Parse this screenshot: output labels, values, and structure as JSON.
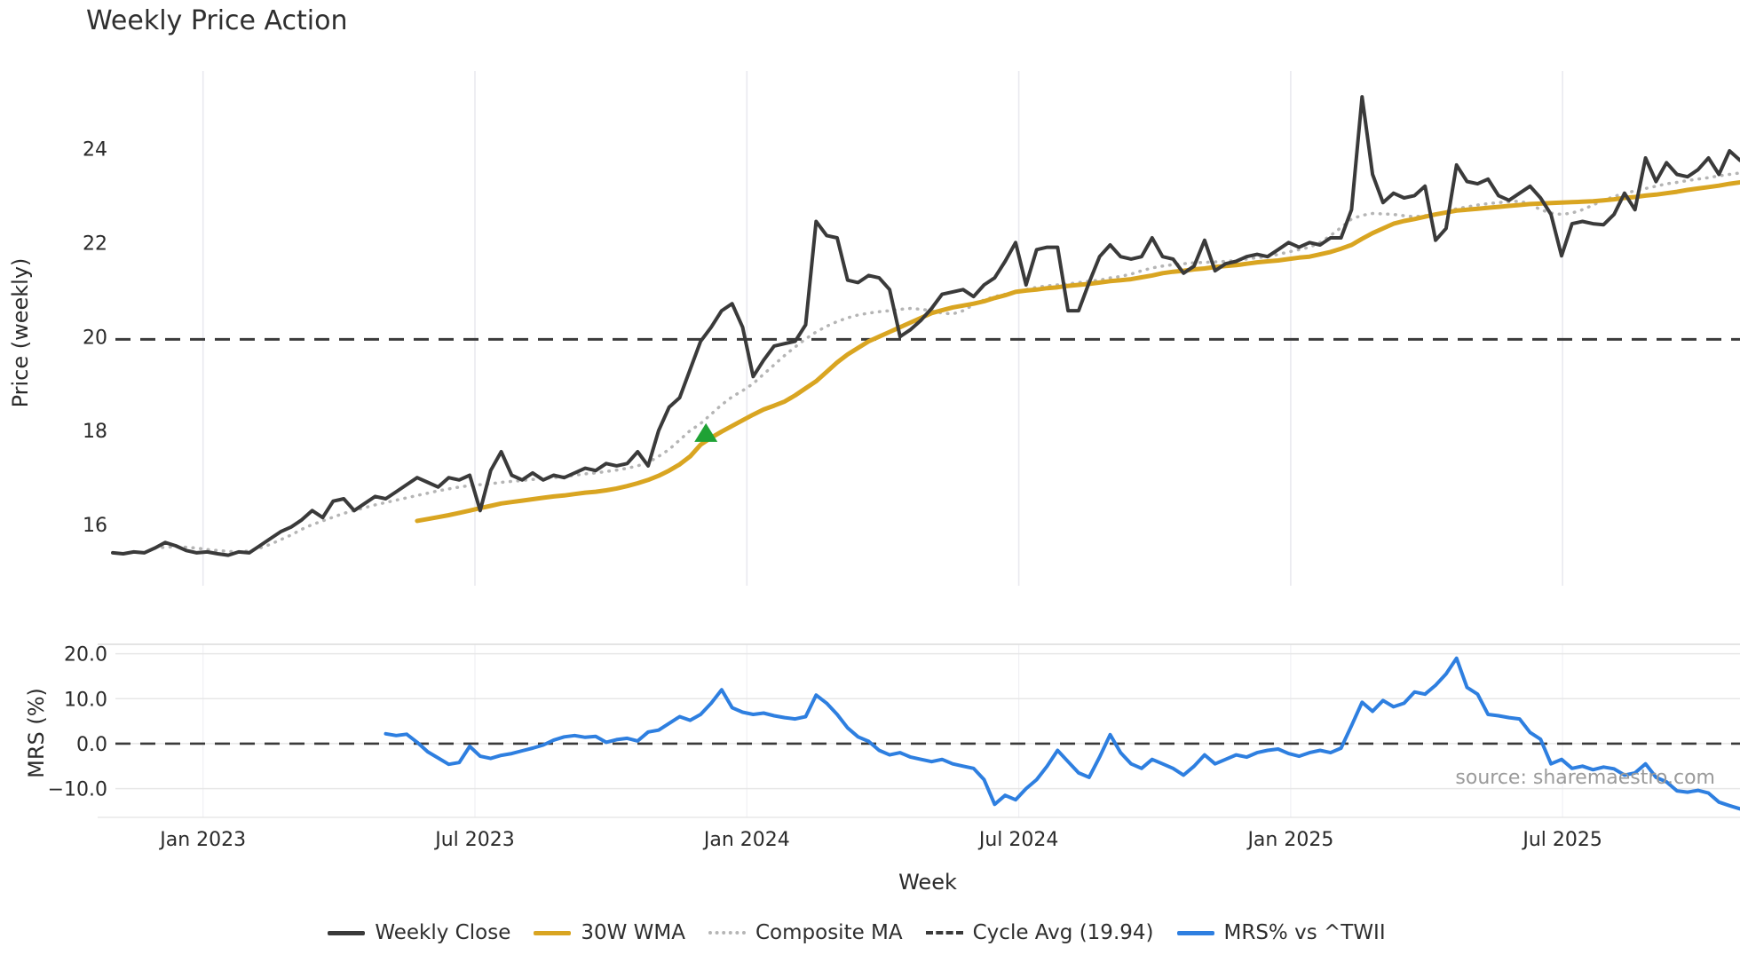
{
  "title": "Weekly Price Action",
  "axes": {
    "price_label": "Price (weekly)",
    "mrs_label": "MRS (%)",
    "x_label": "Week"
  },
  "source_credit": "source: sharemaestro.com",
  "colors": {
    "weekly_close": "#3a3a3a",
    "wma_30w": "#d9a521",
    "composite_ma": "#b5b5b5",
    "cycle_avg": "#3a3a3a",
    "mrs": "#2e7fe0",
    "signal_marker": "#1fa235",
    "grid_light": "#e9e9ef",
    "mrs_grid": "#e7e7e7"
  },
  "legend": [
    {
      "name": "weekly-close",
      "label": "Weekly Close",
      "color": "#3a3a3a",
      "style": "solid"
    },
    {
      "name": "wma-30w",
      "label": "30W WMA",
      "color": "#d9a521",
      "style": "solid"
    },
    {
      "name": "composite-ma",
      "label": "Composite MA",
      "color": "#b5b5b5",
      "style": "dotted"
    },
    {
      "name": "cycle-avg",
      "label": "Cycle Avg (19.94)",
      "color": "#3a3a3a",
      "style": "dashed"
    },
    {
      "name": "mrs-vs-twii",
      "label": "MRS% vs ^TWII",
      "color": "#2e7fe0",
      "style": "solid"
    }
  ],
  "chart_data": {
    "type": "line",
    "x_axis": {
      "label": "Week",
      "n_weeks": 156,
      "range_note": "weekly data, Nov 2022 - Oct 2025",
      "ticks": [
        {
          "label": "Jan 2023",
          "week_index": 8.6
        },
        {
          "label": "Jul 2023",
          "week_index": 34.5
        },
        {
          "label": "Jan 2024",
          "week_index": 60.4
        },
        {
          "label": "Jul 2024",
          "week_index": 86.3
        },
        {
          "label": "Jan 2025",
          "week_index": 112.2
        },
        {
          "label": "Jul 2025",
          "week_index": 138.1
        }
      ]
    },
    "price_panel": {
      "ylabel": "Price (weekly)",
      "ylim": [
        14.7,
        25.65
      ],
      "yticks": [
        {
          "value": 16,
          "label": "16"
        },
        {
          "value": 18,
          "label": "18"
        },
        {
          "value": 20,
          "label": "20"
        },
        {
          "value": 22,
          "label": "22"
        },
        {
          "value": 24,
          "label": "24"
        }
      ],
      "cycle_avg_value": 19.94,
      "signal_marker": {
        "shape": "triangle-up",
        "color": "#1fa235",
        "week_index": 56.5,
        "price": 17.95
      },
      "series": [
        {
          "name": "composite_ma",
          "color": "#b5b5b5",
          "style": "dotted",
          "width": 3.5,
          "start_index": 4,
          "values": [
            15.5,
            15.52,
            15.53,
            15.52,
            15.5,
            15.47,
            15.45,
            15.43,
            15.42,
            15.44,
            15.5,
            15.58,
            15.68,
            15.78,
            15.9,
            16.0,
            16.08,
            16.16,
            16.24,
            16.3,
            16.36,
            16.42,
            16.47,
            16.52,
            16.57,
            16.62,
            16.67,
            16.72,
            16.76,
            16.8,
            16.83,
            16.85,
            16.87,
            16.9,
            16.92,
            16.94,
            16.96,
            16.98,
            17.0,
            17.02,
            17.05,
            17.08,
            17.1,
            17.13,
            17.16,
            17.2,
            17.25,
            17.32,
            17.45,
            17.6,
            17.8,
            18.0,
            18.15,
            18.35,
            18.55,
            18.72,
            18.85,
            19.0,
            19.2,
            19.4,
            19.6,
            19.78,
            19.95,
            20.1,
            20.22,
            20.32,
            20.4,
            20.46,
            20.5,
            20.53,
            20.55,
            20.58,
            20.6,
            20.58,
            20.55,
            20.5,
            20.48,
            20.55,
            20.68,
            20.78,
            20.85,
            20.9,
            20.95,
            21.0,
            21.05,
            21.08,
            21.1,
            21.12,
            21.15,
            21.18,
            21.2,
            21.25,
            21.28,
            21.33,
            21.4,
            21.46,
            21.5,
            21.53,
            21.55,
            21.57,
            21.58,
            21.59,
            21.6,
            21.62,
            21.65,
            21.68,
            21.7,
            21.75,
            21.8,
            21.85,
            21.9,
            22.0,
            22.15,
            22.32,
            22.5,
            22.58,
            22.62,
            22.61,
            22.6,
            22.57,
            22.55,
            22.57,
            22.6,
            22.66,
            22.72,
            22.76,
            22.8,
            22.83,
            22.85,
            22.87,
            22.88,
            22.82,
            22.7,
            22.63,
            22.6,
            22.63,
            22.7,
            22.8,
            22.9,
            22.98,
            23.05,
            23.1,
            23.15,
            23.2,
            23.25,
            23.28,
            23.32,
            23.35,
            23.38,
            23.42,
            23.45,
            23.48
          ]
        },
        {
          "name": "wma_30w",
          "color": "#d9a521",
          "style": "solid",
          "width": 5,
          "start_index": 29,
          "values": [
            16.08,
            16.12,
            16.16,
            16.2,
            16.25,
            16.3,
            16.35,
            16.4,
            16.45,
            16.48,
            16.51,
            16.54,
            16.57,
            16.6,
            16.62,
            16.65,
            16.68,
            16.7,
            16.73,
            16.77,
            16.82,
            16.88,
            16.95,
            17.04,
            17.15,
            17.28,
            17.45,
            17.7,
            17.85,
            17.98,
            18.1,
            18.22,
            18.34,
            18.45,
            18.53,
            18.62,
            18.75,
            18.9,
            19.05,
            19.25,
            19.45,
            19.62,
            19.76,
            19.9,
            20.0,
            20.1,
            20.2,
            20.3,
            20.4,
            20.5,
            20.56,
            20.62,
            20.66,
            20.7,
            20.75,
            20.82,
            20.88,
            20.95,
            20.98,
            21.0,
            21.03,
            21.05,
            21.08,
            21.1,
            21.12,
            21.15,
            21.18,
            21.2,
            21.22,
            21.26,
            21.3,
            21.35,
            21.38,
            21.4,
            21.43,
            21.45,
            21.48,
            21.5,
            21.52,
            21.55,
            21.58,
            21.6,
            21.62,
            21.65,
            21.68,
            21.7,
            21.75,
            21.8,
            21.87,
            21.95,
            22.08,
            22.2,
            22.3,
            22.4,
            22.46,
            22.5,
            22.55,
            22.6,
            22.64,
            22.68,
            22.7,
            22.72,
            22.74,
            22.76,
            22.78,
            22.8,
            22.82,
            22.83,
            22.84,
            22.85,
            22.86,
            22.87,
            22.88,
            22.9,
            22.92,
            22.95,
            22.97,
            23.0,
            23.02,
            23.05,
            23.08,
            23.12,
            23.15,
            23.18,
            23.21,
            23.25,
            23.28
          ]
        },
        {
          "name": "weekly_close",
          "color": "#3a3a3a",
          "style": "solid",
          "width": 4,
          "start_index": 0,
          "values": [
            15.4,
            15.38,
            15.42,
            15.4,
            15.5,
            15.62,
            15.55,
            15.45,
            15.4,
            15.42,
            15.38,
            15.35,
            15.42,
            15.4,
            15.55,
            15.7,
            15.85,
            15.95,
            16.1,
            16.3,
            16.15,
            16.5,
            16.55,
            16.3,
            16.45,
            16.6,
            16.55,
            16.7,
            16.85,
            17.0,
            16.9,
            16.8,
            17.0,
            16.95,
            17.05,
            16.3,
            17.15,
            17.55,
            17.05,
            16.95,
            17.1,
            16.95,
            17.05,
            17.0,
            17.1,
            17.2,
            17.15,
            17.3,
            17.25,
            17.3,
            17.55,
            17.25,
            18.0,
            18.5,
            18.7,
            19.3,
            19.9,
            20.2,
            20.55,
            20.7,
            20.2,
            19.15,
            19.5,
            19.8,
            19.85,
            19.9,
            20.25,
            22.45,
            22.15,
            22.1,
            21.2,
            21.15,
            21.3,
            21.25,
            21.0,
            20.0,
            20.15,
            20.35,
            20.6,
            20.9,
            20.95,
            21.0,
            20.85,
            21.1,
            21.25,
            21.6,
            22.0,
            21.1,
            21.85,
            21.9,
            21.9,
            20.55,
            20.55,
            21.15,
            21.7,
            21.95,
            21.7,
            21.65,
            21.7,
            22.1,
            21.7,
            21.65,
            21.35,
            21.5,
            22.05,
            21.4,
            21.55,
            21.6,
            21.7,
            21.75,
            21.7,
            21.85,
            22.0,
            21.9,
            22.0,
            21.95,
            22.1,
            22.1,
            22.7,
            25.1,
            23.45,
            22.85,
            23.05,
            22.95,
            23.0,
            23.2,
            22.05,
            22.3,
            23.65,
            23.3,
            23.25,
            23.35,
            23.0,
            22.9,
            23.05,
            23.2,
            22.95,
            22.6,
            21.72,
            22.4,
            22.45,
            22.4,
            22.38,
            22.6,
            23.05,
            22.7,
            23.8,
            23.3,
            23.7,
            23.45,
            23.4,
            23.55,
            23.8,
            23.45,
            23.95,
            23.75
          ]
        }
      ]
    },
    "mrs_panel": {
      "ylabel": "MRS (%)",
      "ylim": [
        -16.4,
        22.1
      ],
      "yticks": [
        {
          "value": 20,
          "label": "20.0"
        },
        {
          "value": 10,
          "label": "10.0"
        },
        {
          "value": 0,
          "label": "0.0"
        },
        {
          "value": -10,
          "label": "−10.0"
        }
      ],
      "zero_dash_value": 0,
      "series": [
        {
          "name": "mrs_pct",
          "color": "#2e7fe0",
          "style": "solid",
          "width": 4,
          "start_index": 26,
          "values": [
            2.2,
            1.8,
            2.1,
            0.3,
            -1.8,
            -3.2,
            -4.6,
            -4.2,
            -0.6,
            -2.8,
            -3.3,
            -2.6,
            -2.2,
            -1.6,
            -1.0,
            -0.3,
            0.8,
            1.5,
            1.8,
            1.4,
            1.6,
            0.3,
            0.9,
            1.2,
            0.6,
            2.6,
            3.0,
            4.5,
            6.0,
            5.2,
            6.5,
            9.0,
            12.0,
            8.0,
            7.0,
            6.5,
            6.8,
            6.2,
            5.8,
            5.5,
            6.0,
            10.8,
            9.0,
            6.5,
            3.5,
            1.5,
            0.5,
            -1.5,
            -2.5,
            -2.0,
            -3.0,
            -3.5,
            -4.0,
            -3.5,
            -4.5,
            -5.0,
            -5.5,
            -8.0,
            -13.5,
            -11.5,
            -12.5,
            -10.0,
            -8.0,
            -5.0,
            -1.5,
            -4.0,
            -6.5,
            -7.5,
            -3.0,
            2.0,
            -2.0,
            -4.5,
            -5.5,
            -3.5,
            -4.5,
            -5.5,
            -7.0,
            -5.0,
            -2.5,
            -4.5,
            -3.5,
            -2.5,
            -3.0,
            -2.0,
            -1.5,
            -1.2,
            -2.2,
            -2.8,
            -2.0,
            -1.5,
            -2.0,
            -1.0,
            4.0,
            9.2,
            7.2,
            9.6,
            8.2,
            9.0,
            11.5,
            11.0,
            13.0,
            15.5,
            19.0,
            12.5,
            11.0,
            6.5,
            6.2,
            5.8,
            5.5,
            2.5,
            1.0,
            -4.5,
            -3.5,
            -5.5,
            -5.0,
            -5.8,
            -5.2,
            -5.6,
            -7.0,
            -6.5,
            -4.5,
            -7.5,
            -8.5,
            -10.5,
            -10.8,
            -10.4,
            -11.0,
            -13.0,
            -13.8,
            -14.5
          ]
        }
      ]
    }
  }
}
